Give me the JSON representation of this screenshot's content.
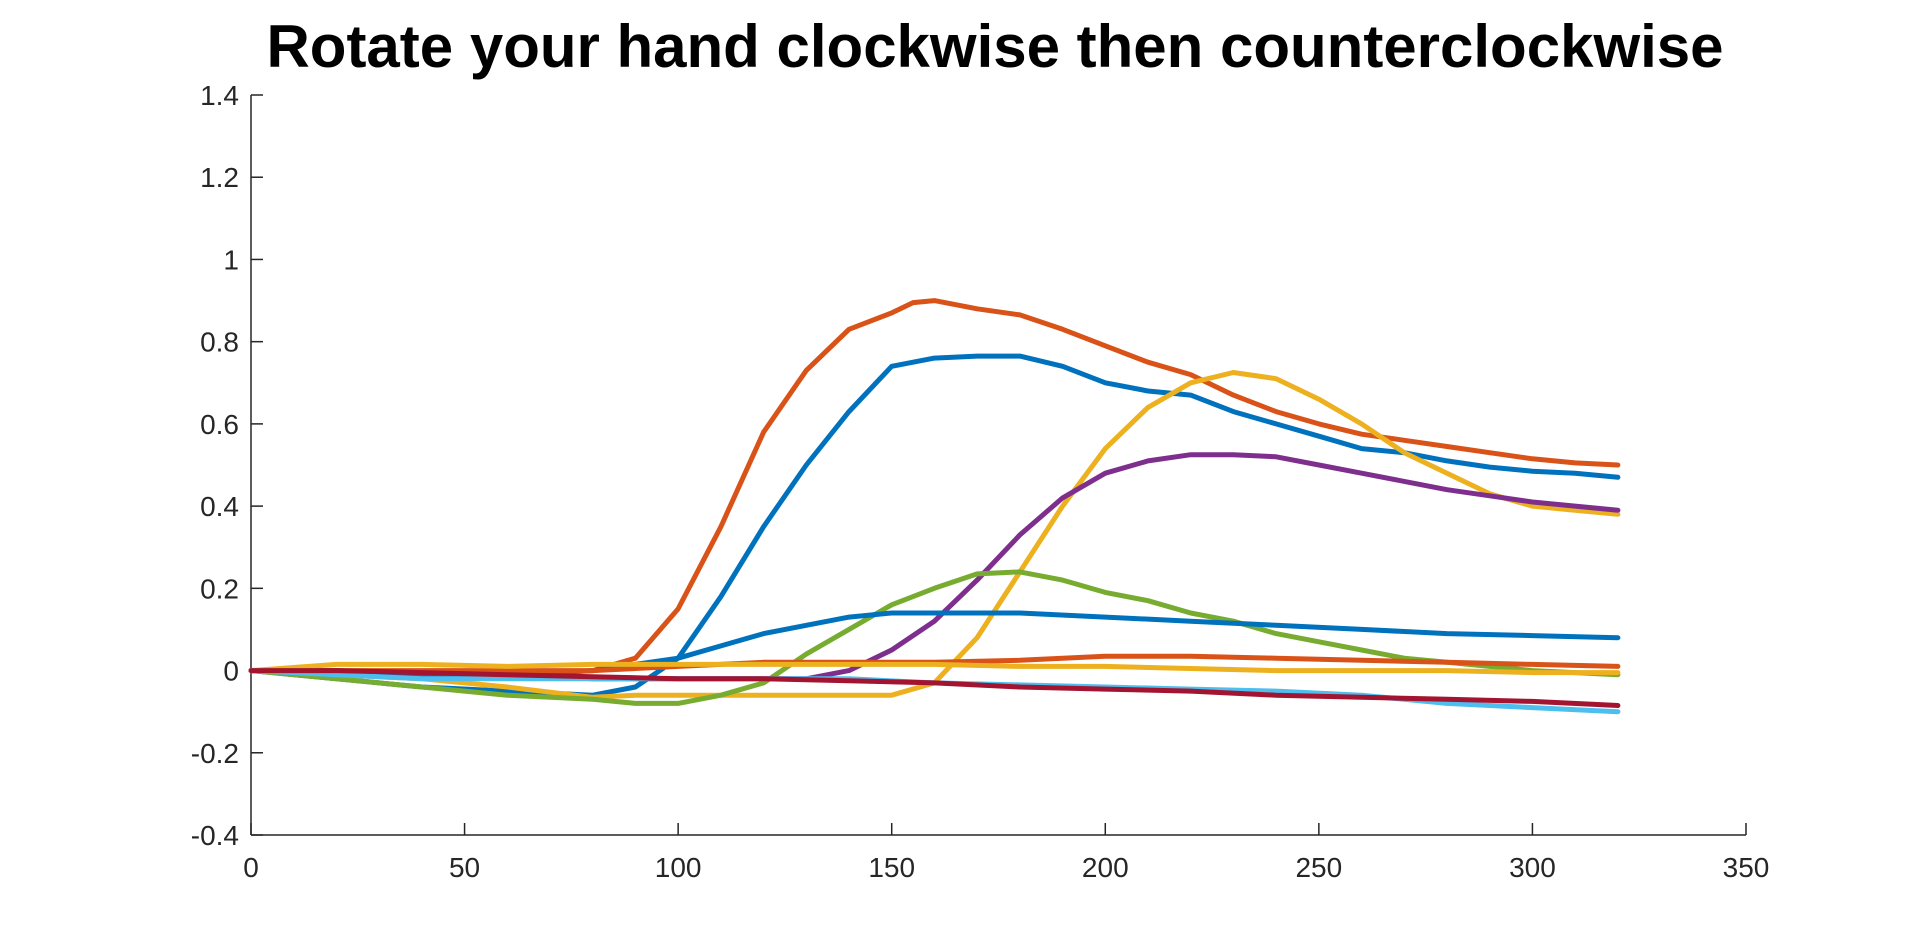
{
  "chart_data": {
    "type": "line",
    "title": "Rotate your hand clockwise then counterclockwise",
    "xlabel": "",
    "ylabel": "",
    "xlim": [
      0,
      350
    ],
    "ylim": [
      -0.4,
      1.4
    ],
    "xticks": [
      0,
      50,
      100,
      150,
      200,
      250,
      300,
      350
    ],
    "yticks": [
      -0.4,
      -0.2,
      0,
      0.2,
      0.4,
      0.6,
      0.8,
      1,
      1.2,
      1.4
    ],
    "ytick_labels": [
      "-0.4",
      "-0.2",
      "0",
      "0.2",
      "0.4",
      "0.6",
      "0.8",
      "1",
      "1.2",
      "1.4"
    ],
    "grid": false,
    "legend": "none",
    "series": [
      {
        "color": "#D95319",
        "x": [
          0,
          20,
          40,
          60,
          80,
          90,
          100,
          110,
          120,
          130,
          140,
          150,
          155,
          160,
          170,
          180,
          190,
          200,
          210,
          220,
          230,
          240,
          250,
          260,
          270,
          280,
          290,
          300,
          310,
          320
        ],
        "y": [
          0,
          -0.01,
          -0.015,
          -0.01,
          0,
          0.03,
          0.15,
          0.35,
          0.58,
          0.73,
          0.83,
          0.87,
          0.895,
          0.9,
          0.88,
          0.865,
          0.83,
          0.79,
          0.75,
          0.72,
          0.67,
          0.63,
          0.6,
          0.575,
          0.56,
          0.545,
          0.53,
          0.515,
          0.505,
          0.5
        ]
      },
      {
        "color": "#0072BD",
        "x": [
          0,
          20,
          40,
          60,
          80,
          90,
          100,
          110,
          120,
          130,
          140,
          150,
          160,
          170,
          180,
          190,
          200,
          210,
          220,
          230,
          240,
          250,
          260,
          270,
          280,
          290,
          300,
          310,
          320
        ],
        "y": [
          0,
          -0.02,
          -0.04,
          -0.05,
          -0.06,
          -0.04,
          0.03,
          0.18,
          0.35,
          0.5,
          0.63,
          0.74,
          0.76,
          0.765,
          0.765,
          0.74,
          0.7,
          0.68,
          0.67,
          0.63,
          0.6,
          0.57,
          0.54,
          0.53,
          0.51,
          0.495,
          0.485,
          0.48,
          0.47
        ]
      },
      {
        "color": "#EDB120",
        "x": [
          0,
          20,
          40,
          60,
          80,
          90,
          100,
          120,
          140,
          150,
          160,
          170,
          180,
          190,
          200,
          210,
          220,
          230,
          240,
          250,
          260,
          270,
          280,
          290,
          300,
          310,
          320
        ],
        "y": [
          0,
          -0.01,
          -0.02,
          -0.04,
          -0.065,
          -0.06,
          -0.06,
          -0.06,
          -0.06,
          -0.06,
          -0.03,
          0.08,
          0.24,
          0.4,
          0.54,
          0.64,
          0.7,
          0.725,
          0.71,
          0.66,
          0.6,
          0.53,
          0.48,
          0.43,
          0.4,
          0.39,
          0.38
        ]
      },
      {
        "color": "#7E2F8E",
        "x": [
          0,
          20,
          40,
          60,
          80,
          100,
          120,
          130,
          140,
          150,
          160,
          170,
          180,
          190,
          200,
          210,
          220,
          230,
          240,
          250,
          260,
          270,
          280,
          290,
          300,
          310,
          320
        ],
        "y": [
          0,
          0,
          -0.01,
          -0.01,
          -0.02,
          -0.02,
          -0.02,
          -0.02,
          0,
          0.05,
          0.12,
          0.22,
          0.33,
          0.42,
          0.48,
          0.51,
          0.525,
          0.525,
          0.52,
          0.5,
          0.48,
          0.46,
          0.44,
          0.425,
          0.41,
          0.4,
          0.39
        ]
      },
      {
        "color": "#77AC30",
        "x": [
          0,
          20,
          40,
          60,
          80,
          90,
          100,
          110,
          120,
          130,
          140,
          150,
          160,
          170,
          180,
          190,
          200,
          210,
          220,
          230,
          240,
          250,
          260,
          270,
          280,
          290,
          300,
          310,
          320
        ],
        "y": [
          0,
          -0.02,
          -0.04,
          -0.06,
          -0.07,
          -0.08,
          -0.08,
          -0.06,
          -0.03,
          0.04,
          0.1,
          0.16,
          0.2,
          0.235,
          0.24,
          0.22,
          0.19,
          0.17,
          0.14,
          0.12,
          0.09,
          0.07,
          0.05,
          0.03,
          0.02,
          0.01,
          0,
          -0.005,
          -0.01
        ]
      },
      {
        "color": "#0072BD",
        "x": [
          0,
          20,
          40,
          60,
          80,
          90,
          100,
          110,
          120,
          130,
          140,
          150,
          160,
          170,
          180,
          200,
          220,
          240,
          260,
          280,
          300,
          320
        ],
        "y": [
          0,
          0,
          -0.01,
          -0.01,
          0,
          0.015,
          0.03,
          0.06,
          0.09,
          0.11,
          0.13,
          0.14,
          0.14,
          0.14,
          0.14,
          0.13,
          0.12,
          0.11,
          0.1,
          0.09,
          0.085,
          0.08
        ]
      },
      {
        "color": "#D95319",
        "x": [
          0,
          20,
          40,
          60,
          80,
          100,
          120,
          140,
          160,
          180,
          200,
          220,
          240,
          260,
          280,
          300,
          320
        ],
        "y": [
          0,
          0,
          0,
          0,
          0,
          0.01,
          0.02,
          0.02,
          0.02,
          0.025,
          0.035,
          0.035,
          0.03,
          0.025,
          0.02,
          0.015,
          0.01
        ]
      },
      {
        "color": "#EDB120",
        "x": [
          0,
          20,
          40,
          60,
          80,
          100,
          120,
          140,
          160,
          180,
          200,
          220,
          240,
          260,
          280,
          300,
          320
        ],
        "y": [
          0,
          0.015,
          0.015,
          0.01,
          0.015,
          0.015,
          0.015,
          0.015,
          0.015,
          0.01,
          0.01,
          0.005,
          0,
          0,
          0,
          -0.005,
          -0.005
        ]
      },
      {
        "color": "#4DBEEE",
        "x": [
          0,
          20,
          40,
          60,
          80,
          100,
          120,
          140,
          160,
          180,
          200,
          220,
          240,
          260,
          280,
          300,
          320
        ],
        "y": [
          0,
          -0.01,
          -0.02,
          -0.02,
          -0.02,
          -0.02,
          -0.02,
          -0.02,
          -0.03,
          -0.035,
          -0.04,
          -0.045,
          -0.05,
          -0.06,
          -0.08,
          -0.09,
          -0.1
        ]
      },
      {
        "color": "#A2142F",
        "x": [
          0,
          20,
          40,
          60,
          80,
          100,
          120,
          140,
          160,
          180,
          200,
          220,
          240,
          260,
          280,
          300,
          320
        ],
        "y": [
          0,
          0,
          -0.005,
          -0.01,
          -0.015,
          -0.02,
          -0.02,
          -0.025,
          -0.03,
          -0.04,
          -0.045,
          -0.05,
          -0.06,
          -0.065,
          -0.07,
          -0.075,
          -0.085
        ]
      }
    ]
  }
}
